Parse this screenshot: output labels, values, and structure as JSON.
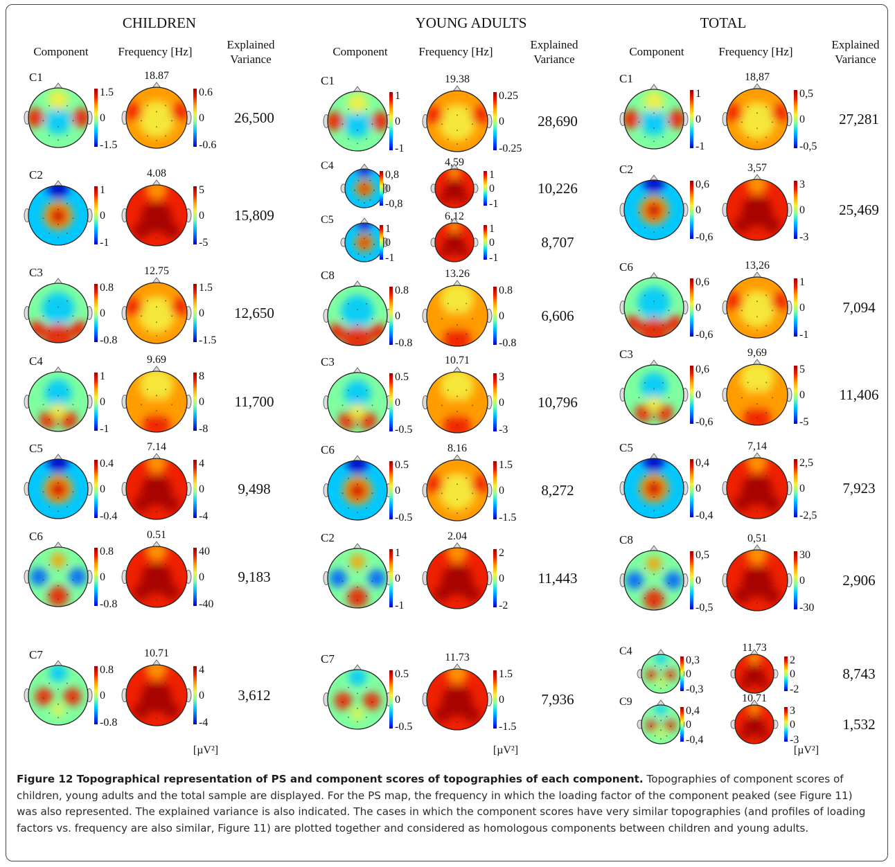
{
  "groups": [
    {
      "title": "CHILDREN",
      "headers": {
        "component": "Component",
        "frequency": "Frequency [Hz]",
        "variance": [
          "Explained",
          "Variance"
        ]
      },
      "units": "[µV²]",
      "rows": [
        {
          "label": "C1",
          "freq": "18.87",
          "compScale": [
            "1.5",
            "0",
            "-1.5"
          ],
          "freqScale": [
            "0.6",
            "0",
            "-0.6"
          ],
          "variance": "26,500",
          "compPattern": "edges",
          "freqPattern": "warm"
        },
        {
          "label": "C2",
          "freq": "4.08",
          "compScale": [
            "1",
            "0",
            "-1"
          ],
          "freqScale": [
            "5",
            "0",
            "-5"
          ],
          "variance": "15,809",
          "compPattern": "center",
          "freqPattern": "hot"
        },
        {
          "label": "C3",
          "freq": "12.75",
          "compScale": [
            "0.8",
            "0",
            "-0.8"
          ],
          "freqScale": [
            "1.5",
            "0",
            "-1.5"
          ],
          "variance": "12,650",
          "compPattern": "bottom-arc",
          "freqPattern": "warm"
        },
        {
          "label": "C4",
          "freq": "9.69",
          "compScale": [
            "1",
            "0",
            "-1"
          ],
          "freqScale": [
            "8",
            "0",
            "-8"
          ],
          "variance": "11,700",
          "compPattern": "bottom-spots",
          "freqPattern": "yellow-red"
        },
        {
          "label": "C5",
          "freq": "7.14",
          "compScale": [
            "0.4",
            "0",
            "-0.4"
          ],
          "freqScale": [
            "4",
            "0",
            "-4"
          ],
          "variance": "9,498",
          "compPattern": "center",
          "freqPattern": "hot"
        },
        {
          "label": "C6",
          "freq": "0.51",
          "compScale": [
            "0.8",
            "0",
            "-0.8"
          ],
          "freqScale": [
            "40",
            "0",
            "-40"
          ],
          "variance": "9,183",
          "compPattern": "posterior",
          "freqPattern": "hot"
        },
        {
          "label": "C7",
          "freq": "10.71",
          "compScale": [
            "0.8",
            "0",
            "-0.8"
          ],
          "freqScale": [
            "4",
            "0",
            "-4"
          ],
          "variance": "3,612",
          "compPattern": "bilateral",
          "freqPattern": "hot"
        }
      ]
    },
    {
      "title": "YOUNG ADULTS",
      "headers": {
        "component": "Component",
        "frequency": "Frequency [Hz]",
        "variance": [
          "Explained",
          "Variance"
        ]
      },
      "units": "[µV²]",
      "rows": [
        {
          "label": "C1",
          "freq": "19.38",
          "compScale": [
            "1",
            "0",
            "-1"
          ],
          "freqScale": [
            "0.25",
            "0",
            "-0.25"
          ],
          "variance": "28,690",
          "compPattern": "edges",
          "freqPattern": "warm"
        },
        {
          "label": "C4",
          "freq": "4,59",
          "compScale": [
            "0,8",
            "0",
            "-0,8"
          ],
          "freqScale": [
            "1",
            "0",
            "-1"
          ],
          "variance": "10,226",
          "compPattern": "center",
          "freqPattern": "hot"
        },
        {
          "label": "C5",
          "freq": "6,12",
          "compScale": [
            "1",
            "0",
            "-1"
          ],
          "freqScale": [
            "1",
            "0",
            "-1"
          ],
          "variance": "8,707",
          "compPattern": "center",
          "freqPattern": "hot"
        },
        {
          "label": "C8",
          "freq": "13.26",
          "compScale": [
            "0.8",
            "0",
            "-0.8"
          ],
          "freqScale": [
            "0.8",
            "0",
            "-0.8"
          ],
          "variance": "6,606",
          "compPattern": "bottom-arc",
          "freqPattern": "yellow-red"
        },
        {
          "label": "C3",
          "freq": "10.71",
          "compScale": [
            "0.5",
            "0",
            "-0.5"
          ],
          "freqScale": [
            "3",
            "0",
            "-3"
          ],
          "variance": "10,796",
          "compPattern": "bottom-spots",
          "freqPattern": "yellow-red"
        },
        {
          "label": "C6",
          "freq": "8.16",
          "compScale": [
            "0.5",
            "0",
            "-0.5"
          ],
          "freqScale": [
            "1.5",
            "0",
            "-1.5"
          ],
          "variance": "8,272",
          "compPattern": "center",
          "freqPattern": "warm"
        },
        {
          "label": "C2",
          "freq": "2.04",
          "compScale": [
            "1",
            "0",
            "-1"
          ],
          "freqScale": [
            "2",
            "0",
            "-2"
          ],
          "variance": "11,443",
          "compPattern": "posterior",
          "freqPattern": "hot"
        },
        {
          "label": "C7",
          "freq": "11.73",
          "compScale": [
            "0.5",
            "0",
            "-0.5"
          ],
          "freqScale": [
            "1.5",
            "0",
            "-1.5"
          ],
          "variance": "7,936",
          "compPattern": "bilateral",
          "freqPattern": "hot"
        }
      ]
    },
    {
      "title": "TOTAL",
      "headers": {
        "component": "Component",
        "frequency": "Frequency [Hz]",
        "variance": [
          "Explained",
          "Variance"
        ]
      },
      "units": "[µV²]",
      "rows": [
        {
          "label": "C1",
          "freq": "18,87",
          "compScale": [
            "1",
            "0",
            "-1"
          ],
          "freqScale": [
            "0,5",
            "0",
            "-0,5"
          ],
          "variance": "27,281",
          "compPattern": "edges",
          "freqPattern": "warm"
        },
        {
          "label": "C2",
          "freq": "3,57",
          "compScale": [
            "0,6",
            "0",
            "-0,6"
          ],
          "freqScale": [
            "3",
            "0",
            "-3"
          ],
          "variance": "25,469",
          "compPattern": "center",
          "freqPattern": "hot"
        },
        {
          "label": "C6",
          "freq": "13,26",
          "compScale": [
            "0,6",
            "0",
            "-0,6"
          ],
          "freqScale": [
            "1",
            "0",
            "-1"
          ],
          "variance": "7,094",
          "compPattern": "bottom-arc",
          "freqPattern": "warm"
        },
        {
          "label": "C3",
          "freq": "9,69",
          "compScale": [
            "0,6",
            "0",
            "-0,6"
          ],
          "freqScale": [
            "5",
            "0",
            "-5"
          ],
          "variance": "11,406",
          "compPattern": "bottom-spots",
          "freqPattern": "yellow-red"
        },
        {
          "label": "C5",
          "freq": "7,14",
          "compScale": [
            "0,4",
            "0",
            "-0,4"
          ],
          "freqScale": [
            "2,5",
            "0",
            "-2,5"
          ],
          "variance": "7,923",
          "compPattern": "center",
          "freqPattern": "hot"
        },
        {
          "label": "C8",
          "freq": "0,51",
          "compScale": [
            "0,5",
            "0",
            "-0,5"
          ],
          "freqScale": [
            "30",
            "0",
            "-30"
          ],
          "variance": "2,906",
          "compPattern": "posterior",
          "freqPattern": "hot"
        },
        {
          "label": "C4",
          "freq": "11,73",
          "compScale": [
            "0,3",
            "0",
            "-0,3"
          ],
          "freqScale": [
            "2",
            "0",
            "-2"
          ],
          "variance": "8,743",
          "compPattern": "bilateral",
          "freqPattern": "hot"
        },
        {
          "label": "C9",
          "freq": "10,71",
          "compScale": [
            "0,4",
            "0",
            "-0,4"
          ],
          "freqScale": [
            "3",
            "0",
            "-3"
          ],
          "variance": "1,532",
          "compPattern": "bilateral",
          "freqPattern": "hot"
        }
      ]
    }
  ],
  "colormap": [
    "#0000c8",
    "#0060ff",
    "#00c8ff",
    "#7fffa0",
    "#f4f040",
    "#ff9c00",
    "#ee2000",
    "#a00000"
  ],
  "caption": {
    "title": "Figure 12 Topographical representation of PS and component scores of topographies of each component.",
    "text": "Topographies of component scores of children, young adults and the total sample are displayed. For the PS map, the frequency in which the loading factor of the component peaked (see Figure 11) was also represented. The explained variance is also indicated. The cases in which the component scores have very similar topographies (and profiles of loading factors vs. frequency are also similar, Figure 11) are plotted together and considered as homologous components between children and young adults."
  }
}
